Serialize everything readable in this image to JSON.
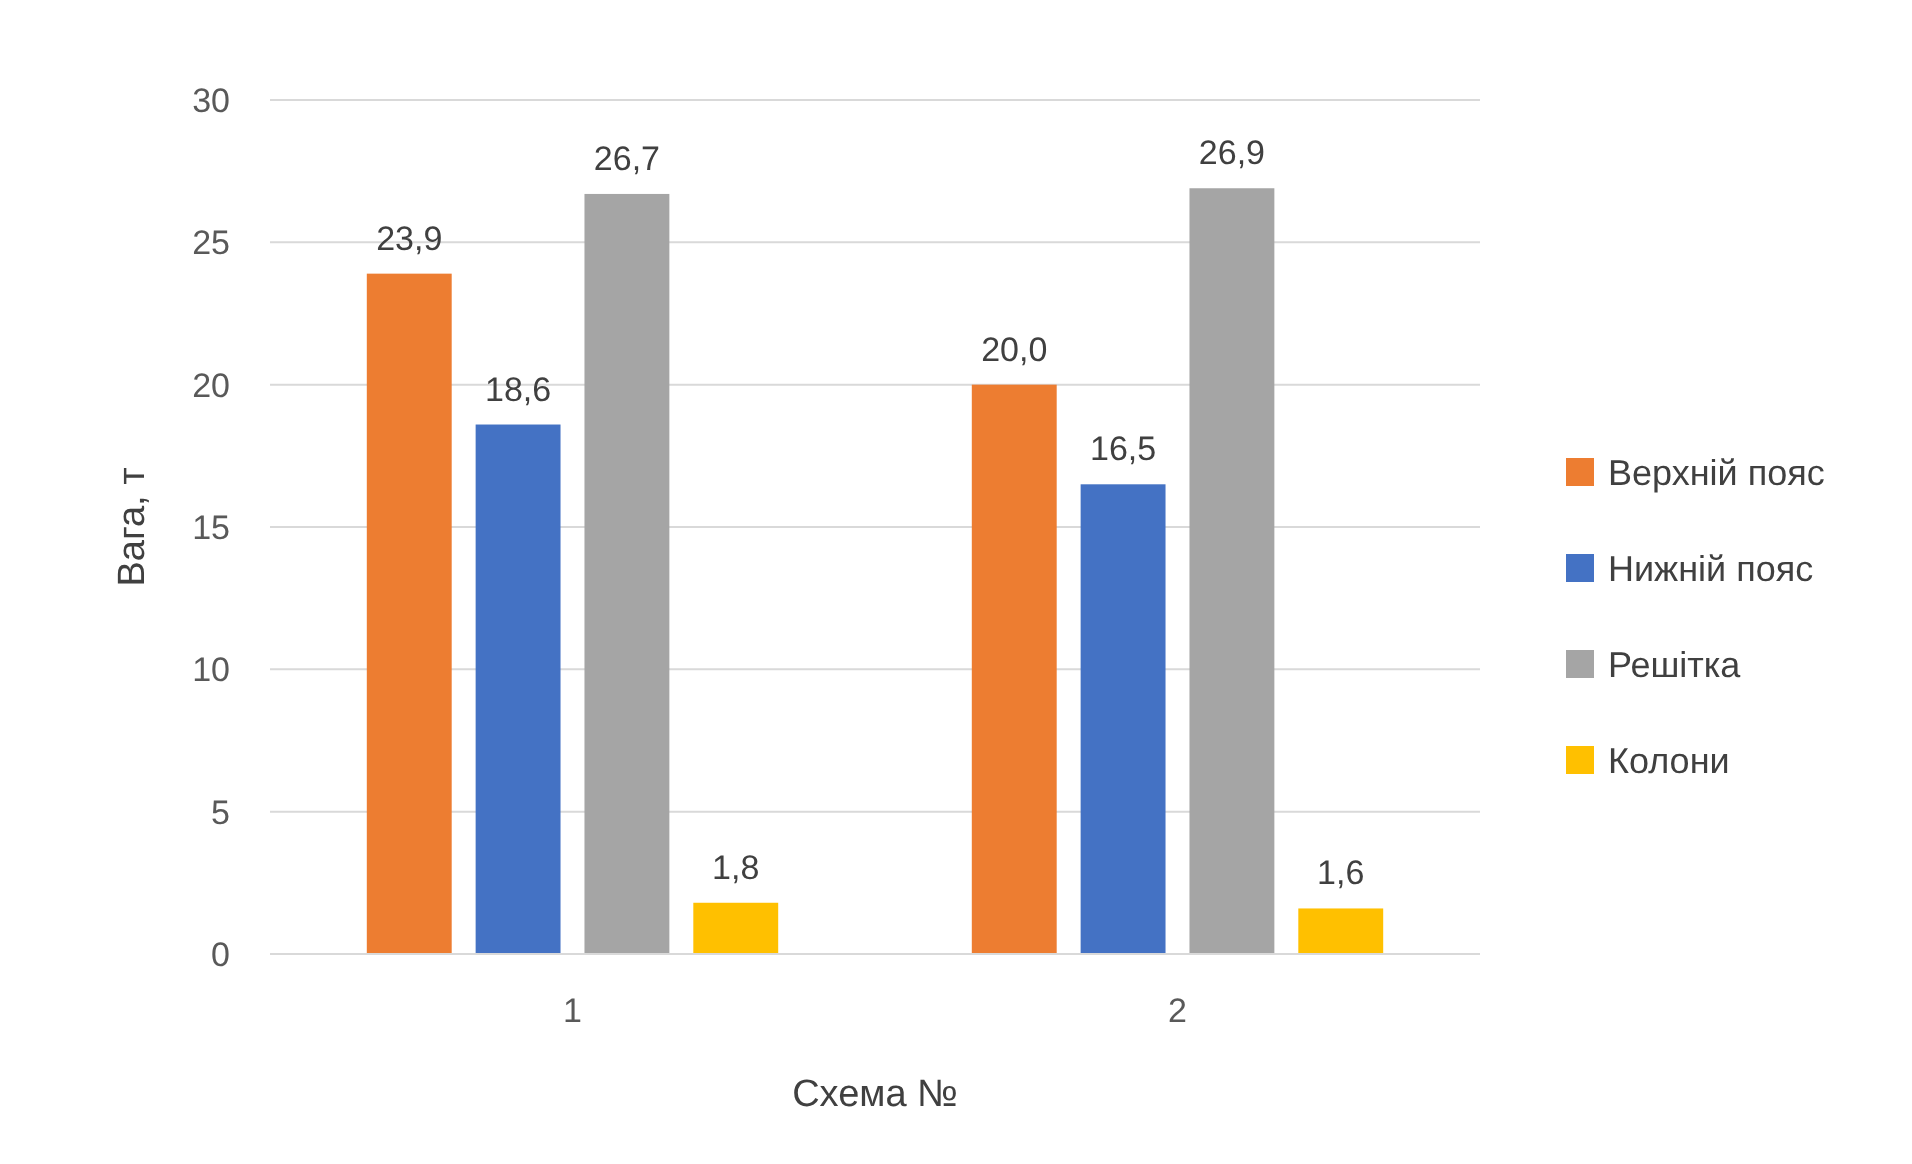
{
  "chart_data": {
    "type": "bar",
    "xlabel": "Схема №",
    "ylabel": "Вага, т",
    "categories": [
      "1",
      "2"
    ],
    "series": [
      {
        "name": "Верхній пояс",
        "color": "#ed7d31",
        "values": [
          23.9,
          20.0
        ],
        "value_labels": [
          "23,9",
          "20,0"
        ]
      },
      {
        "name": "Нижній пояс",
        "color": "#4472c4",
        "values": [
          18.6,
          16.5
        ],
        "value_labels": [
          "18,6",
          "16,5"
        ]
      },
      {
        "name": "Решітка",
        "color": "#a5a5a5",
        "values": [
          26.7,
          26.9
        ],
        "value_labels": [
          "26,7",
          "26,9"
        ]
      },
      {
        "name": "Колони",
        "color": "#ffc000",
        "values": [
          1.8,
          1.6
        ],
        "value_labels": [
          "1,8",
          "1,6"
        ]
      }
    ],
    "ylim": [
      0,
      30
    ],
    "yticks": [
      0,
      5,
      10,
      15,
      20,
      25,
      30
    ],
    "grid": "y",
    "legend": "right"
  }
}
